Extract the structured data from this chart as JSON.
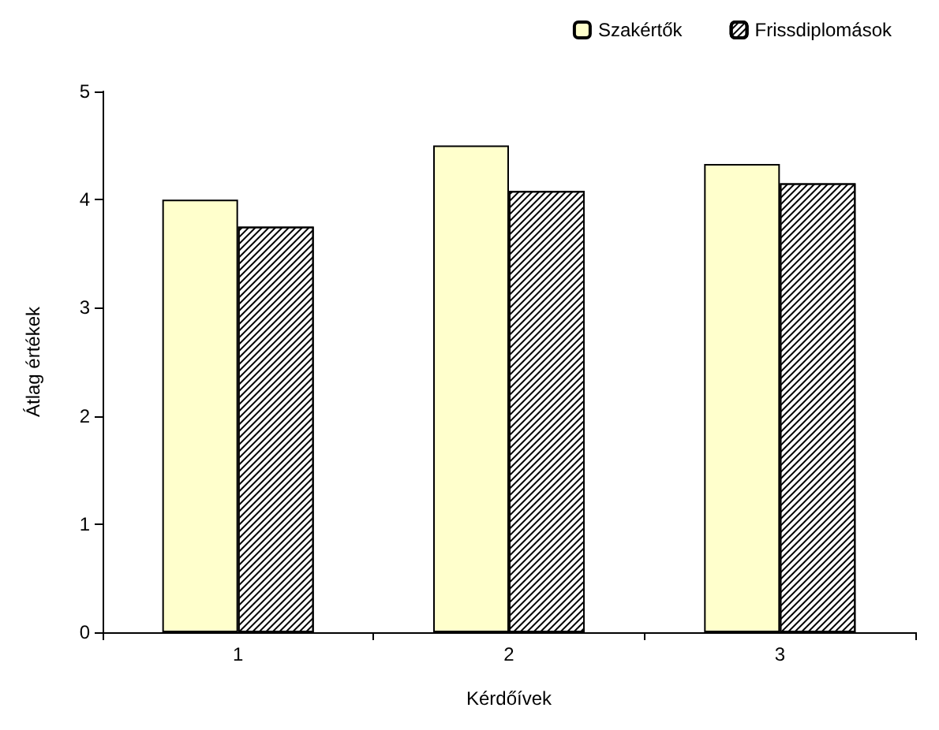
{
  "chart_data": {
    "type": "bar",
    "xlabel": "Kérdőívek",
    "ylabel": "Átlag értékek",
    "categories": [
      "1",
      "2",
      "3"
    ],
    "series": [
      {
        "name": "Szakértők",
        "color": "#ffffcc",
        "values": [
          4.0,
          4.5,
          4.33
        ]
      },
      {
        "name": "Frissdiplomások",
        "color": "#ffffff",
        "values": [
          3.75,
          4.08,
          4.15
        ]
      }
    ],
    "ylim": [
      0,
      5
    ],
    "yticks": [
      0,
      1,
      2,
      3,
      4,
      5
    ],
    "grid": false,
    "legend": "top right"
  }
}
